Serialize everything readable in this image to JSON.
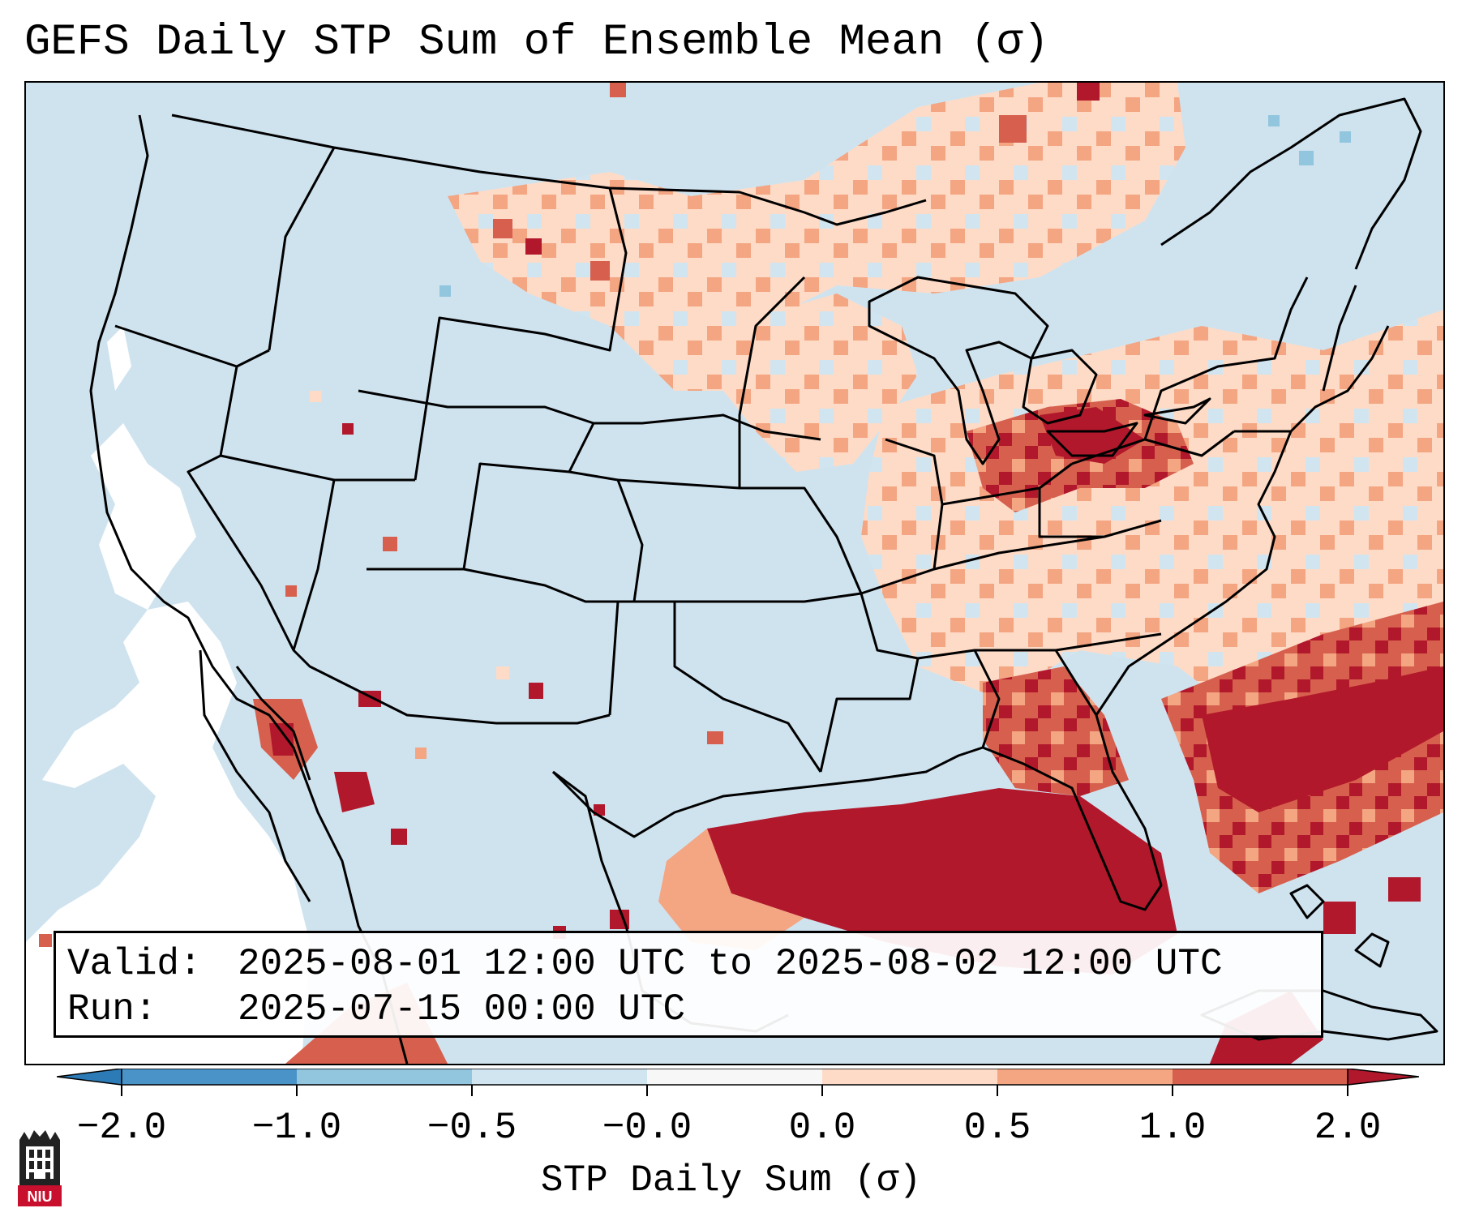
{
  "title": "GEFS Daily STP Sum of Ensemble Mean (σ)",
  "info": {
    "valid_label": "Valid:",
    "valid_value": "2025-08-01 12:00 UTC to 2025-08-02 12:00 UTC",
    "run_label": "Run:",
    "run_value": "2025-07-15 00:00 UTC"
  },
  "colorbar": {
    "label": "STP Daily Sum (σ)",
    "ticks": [
      "−2.0",
      "−1.0",
      "−0.5",
      "−0.0",
      "0.0",
      "0.5",
      "1.0",
      "2.0"
    ],
    "colors": {
      "below_min": "#2c7bb6",
      "neg2_neg1": "#4a93c9",
      "neg1_neg05": "#92c5de",
      "neg05_0": "#d1e5f0",
      "zero_band": "#f7f7f7",
      "pos0_05": "#fddbc7",
      "pos05_1": "#f4a582",
      "pos1_2": "#d6604d",
      "above_max": "#b2182b"
    }
  },
  "logo": {
    "text": "NIU",
    "color": "#c8102e"
  },
  "map": {
    "ocean_neutral": "#ffffff",
    "land_neutral": "#d1e5f0"
  }
}
